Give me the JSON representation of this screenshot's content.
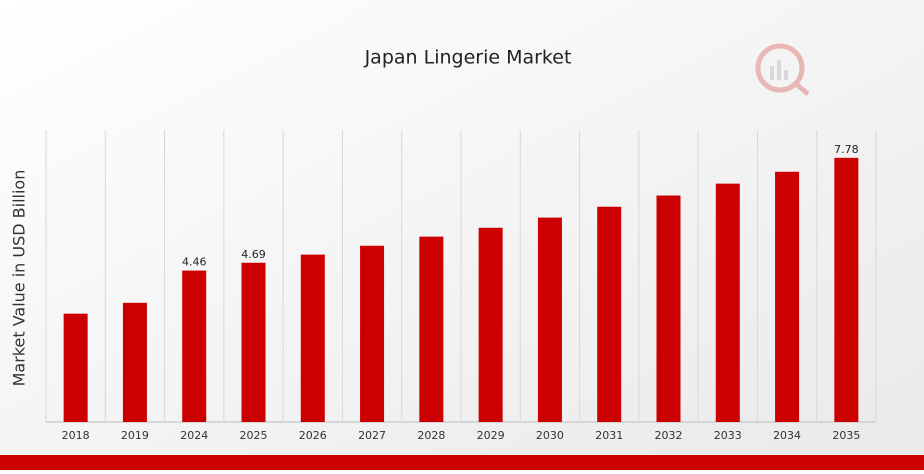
{
  "chart_data": {
    "type": "bar",
    "title": "Japan Lingerie Market",
    "y_label": "Market Value in USD Billion",
    "categories": [
      "2018",
      "2019",
      "2024",
      "2025",
      "2026",
      "2027",
      "2028",
      "2029",
      "2030",
      "2031",
      "2032",
      "2033",
      "2034",
      "2035"
    ],
    "values": [
      3.19,
      3.51,
      4.46,
      4.69,
      4.93,
      5.19,
      5.46,
      5.72,
      6.02,
      6.34,
      6.67,
      7.02,
      7.37,
      7.78
    ],
    "value_labels": [
      null,
      null,
      "4.46",
      "4.69",
      null,
      null,
      null,
      null,
      null,
      null,
      null,
      null,
      null,
      "7.78"
    ],
    "color": "#cc0000",
    "ylim": [
      0,
      8.6
    ],
    "grid": true
  }
}
